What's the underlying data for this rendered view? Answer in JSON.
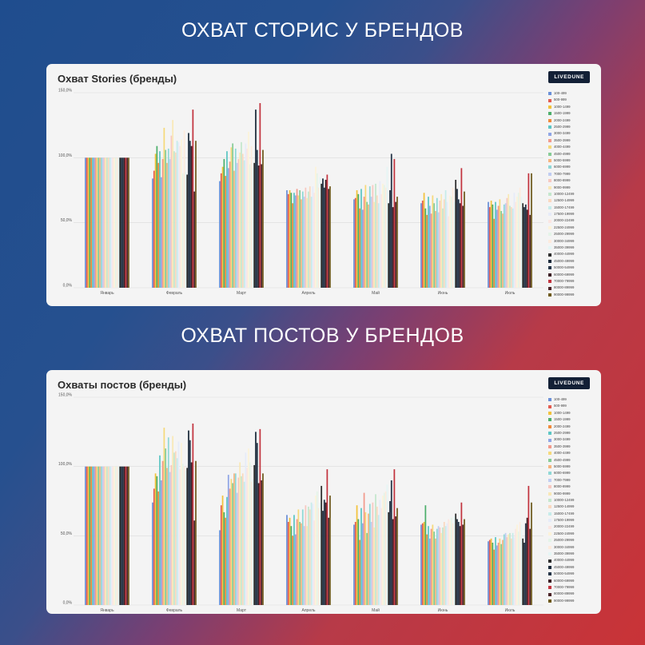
{
  "headings": {
    "stories": "ОХВАТ СТОРИС У БРЕНДОВ",
    "posts": "ОХВАТ ПОСТОВ У БРЕНДОВ"
  },
  "badge": "LIVEDUNE",
  "colors": {
    "background_left": "#1f4d8e",
    "background_right": "#c93337",
    "badge": "#132036",
    "series": [
      "#6a8fd8",
      "#e35b4f",
      "#f2c23c",
      "#4daf6b",
      "#f08a3c",
      "#5cc6c4",
      "#8fa5e6",
      "#f29a8c",
      "#f6d97a",
      "#86cc96",
      "#f7b47e",
      "#8fd8d6",
      "#c0cdf2",
      "#f7c8c0",
      "#f9e8b6",
      "#c4e7cd",
      "#fad8bf",
      "#c6ecea",
      "#e6ebf9",
      "#fbe6e2",
      "#fcf3d9",
      "#e4f4e8",
      "#fdebdd",
      "#e5f6f5",
      "#2d2d2d",
      "#1b2a3a",
      "#243447",
      "#3b1d24",
      "#c2343f",
      "#4a2226",
      "#6e5a1e"
    ]
  },
  "chart_data": [
    {
      "type": "bar",
      "title": "Охват Stories (бренды)",
      "categories": [
        "Январь",
        "Февраль",
        "Март",
        "Апрель",
        "Май",
        "Июнь",
        "Июль"
      ],
      "y_ticks": [
        "0,0%",
        "50,0%",
        "100,0%",
        "150,0%"
      ],
      "ylim": [
        0,
        150
      ],
      "legend_position": "right",
      "grid": true,
      "series_names": [
        "100-499",
        "500-999",
        "1000-1499",
        "1500-1999",
        "2000-2499",
        "2500-2999",
        "3000-3499",
        "3500-3999",
        "4000-4499",
        "4500-4999",
        "5000-5999",
        "6000-6999",
        "7000-7999",
        "8000-8999",
        "9000-9999",
        "10000-12499",
        "12500-14999",
        "15000-17499",
        "17500-19999",
        "20000-22499",
        "22500-24999",
        "25000-29999",
        "30000-34999",
        "35000-39999",
        "40000-44999",
        "45000-49999",
        "50000-54999",
        "60000-69999",
        "70000-79999",
        "80000-89999",
        "90000-99999"
      ],
      "values": [
        [
          100,
          100,
          100,
          100,
          100,
          100,
          100,
          100,
          100,
          100,
          100,
          100,
          100,
          100,
          100,
          100,
          100,
          100,
          100,
          100,
          100,
          100,
          100,
          100,
          100,
          100,
          100,
          100,
          100,
          100,
          100
        ],
        [
          84,
          90,
          103,
          109,
          96,
          105,
          85,
          99,
          123,
          106,
          96,
          107,
          99,
          117,
          129,
          105,
          104,
          113,
          112,
          109,
          114,
          88,
          121,
          89,
          87,
          119,
          113,
          109,
          137,
          74,
          113
        ],
        [
          82,
          88,
          93,
          99,
          86,
          105,
          92,
          97,
          108,
          111,
          90,
          107,
          96,
          99,
          104,
          112,
          103,
          98,
          111,
          107,
          120,
          95,
          109,
          92,
          96,
          137,
          106,
          94,
          142,
          95,
          106
        ],
        [
          75,
          72,
          75,
          73,
          65,
          73,
          71,
          76,
          71,
          75,
          68,
          74,
          70,
          77,
          69,
          74,
          78,
          70,
          78,
          73,
          93,
          88,
          77,
          85,
          80,
          84,
          77,
          83,
          87,
          76,
          78
        ],
        [
          68,
          69,
          75,
          72,
          61,
          76,
          60,
          70,
          79,
          66,
          64,
          78,
          70,
          79,
          66,
          80,
          71,
          65,
          82,
          72,
          80,
          79,
          77,
          93,
          65,
          75,
          103,
          62,
          99,
          66,
          70
        ],
        [
          65,
          67,
          73,
          61,
          56,
          70,
          63,
          57,
          71,
          65,
          59,
          69,
          58,
          67,
          72,
          61,
          68,
          75,
          66,
          55,
          71,
          70,
          77,
          66,
          83,
          76,
          68,
          65,
          92,
          63,
          74
        ],
        [
          66,
          62,
          67,
          64,
          53,
          66,
          60,
          63,
          68,
          59,
          57,
          64,
          65,
          69,
          72,
          63,
          62,
          61,
          73,
          66,
          70,
          73,
          77,
          70,
          65,
          62,
          64,
          60,
          88,
          56,
          88
        ]
      ]
    },
    {
      "type": "bar",
      "title": "Охваты постов (бренды)",
      "categories": [
        "Январь",
        "Февраль",
        "Март",
        "Апрель",
        "Май",
        "Июнь",
        "Июль"
      ],
      "y_ticks": [
        "0,0%",
        "50,0%",
        "100,0%",
        "150,0%"
      ],
      "ylim": [
        0,
        150
      ],
      "legend_position": "right",
      "grid": true,
      "series_names": [
        "100-499",
        "500-999",
        "1000-1499",
        "1500-1999",
        "2000-2499",
        "2500-2999",
        "3000-3499",
        "3500-3999",
        "4000-4499",
        "4500-4999",
        "5000-5999",
        "6000-6999",
        "7000-7999",
        "8000-8999",
        "9000-9999",
        "10000-12499",
        "12500-14999",
        "15000-17499",
        "17500-19999",
        "20000-22499",
        "22500-24999",
        "25000-29999",
        "30000-34999",
        "35000-39999",
        "40000-44999",
        "45000-49999",
        "50000-54999",
        "60000-69999",
        "70000-79999",
        "80000-89999",
        "90000-99999"
      ],
      "values": [
        [
          100,
          100,
          100,
          100,
          100,
          100,
          100,
          100,
          100,
          100,
          100,
          100,
          100,
          100,
          100,
          100,
          100,
          100,
          100,
          100,
          100,
          100,
          100,
          100,
          100,
          100,
          100,
          100,
          100,
          100,
          100
        ],
        [
          74,
          84,
          95,
          93,
          82,
          108,
          90,
          104,
          128,
          113,
          99,
          121,
          96,
          101,
          122,
          110,
          111,
          106,
          118,
          98,
          117,
          102,
          100,
          97,
          99,
          126,
          119,
          103,
          131,
          61,
          104
        ],
        [
          54,
          72,
          79,
          67,
          63,
          78,
          94,
          84,
          91,
          88,
          95,
          95,
          81,
          92,
          103,
          93,
          95,
          89,
          110,
          99,
          113,
          103,
          89,
          91,
          101,
          125,
          117,
          88,
          127,
          90,
          95
        ],
        [
          65,
          60,
          63,
          57,
          50,
          65,
          51,
          62,
          69,
          60,
          59,
          69,
          57,
          72,
          57,
          71,
          69,
          74,
          73,
          61,
          79,
          82,
          70,
          74,
          86,
          68,
          76,
          74,
          98,
          63,
          79
        ],
        [
          58,
          60,
          72,
          62,
          47,
          70,
          59,
          81,
          67,
          52,
          66,
          73,
          60,
          74,
          56,
          80,
          71,
          65,
          76,
          70,
          79,
          81,
          82,
          87,
          67,
          75,
          90,
          62,
          98,
          64,
          70
        ],
        [
          58,
          59,
          60,
          72,
          51,
          57,
          48,
          55,
          58,
          53,
          48,
          55,
          57,
          56,
          52,
          56,
          60,
          57,
          59,
          62,
          61,
          63,
          59,
          64,
          66,
          62,
          60,
          57,
          74,
          58,
          62
        ],
        [
          46,
          47,
          48,
          45,
          40,
          49,
          43,
          45,
          48,
          44,
          47,
          51,
          52,
          49,
          51,
          52,
          48,
          52,
          49,
          55,
          58,
          53,
          60,
          58,
          48,
          45,
          59,
          63,
          86,
          55,
          74
        ]
      ]
    }
  ]
}
